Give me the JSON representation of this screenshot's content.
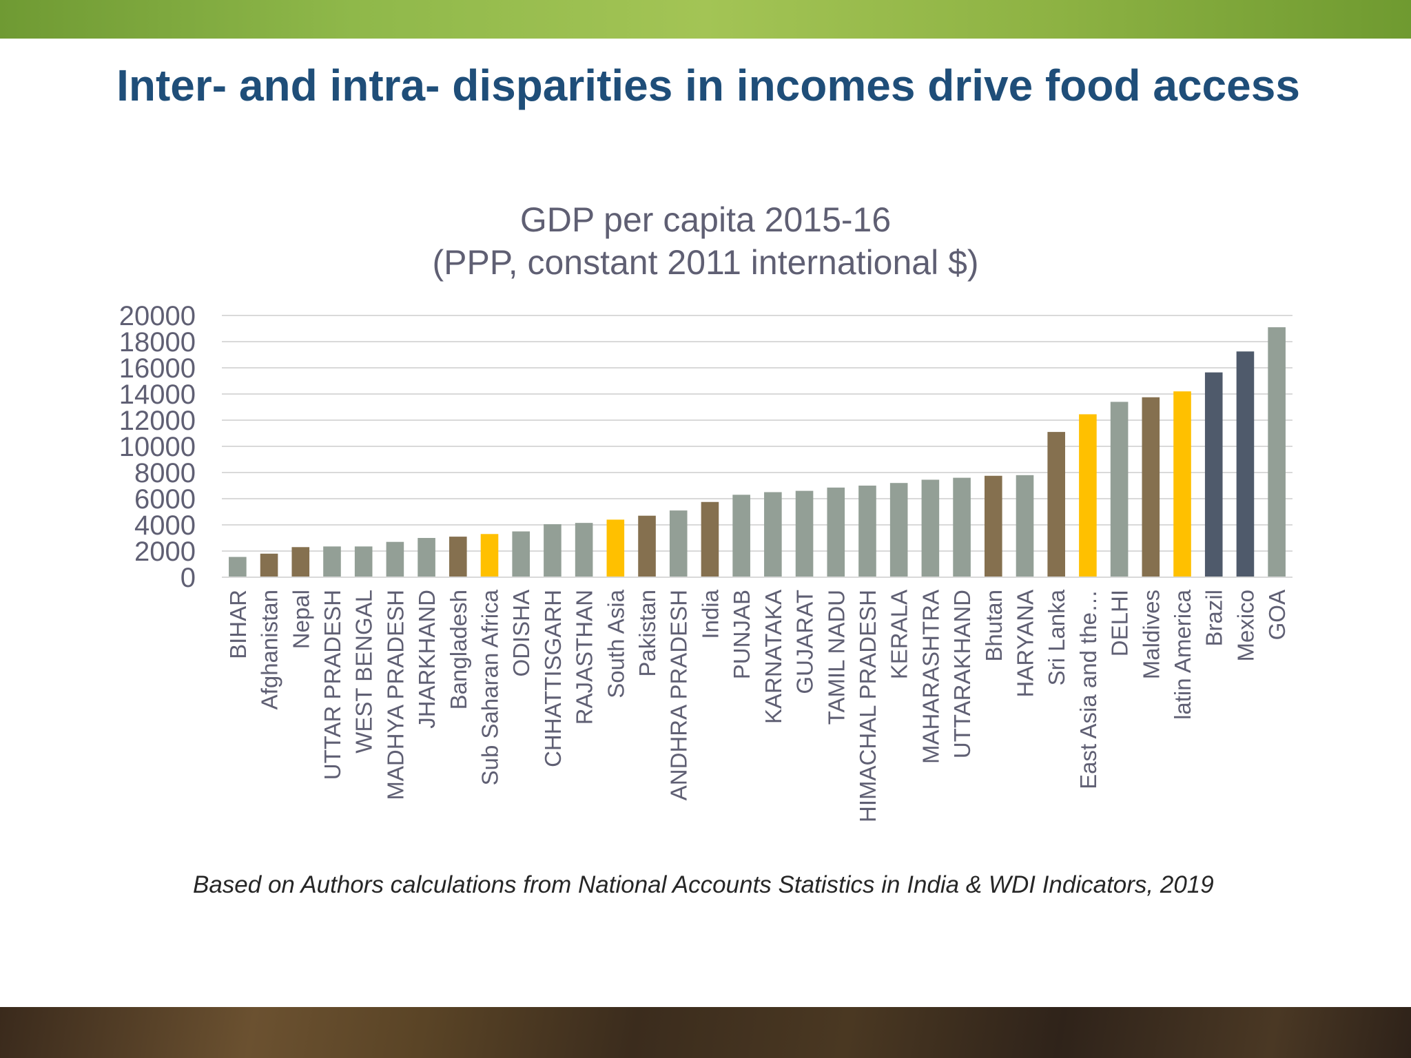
{
  "slide": {
    "title": "Inter- and intra- disparities in incomes drive food access",
    "footnote": "Based on Authors calculations from National Accounts Statistics in India & WDI Indicators, 2019"
  },
  "colors": {
    "indian_state": "#939f96",
    "south_asian_country": "#85704f",
    "region_aggregate": "#ffc000",
    "other_country": "#4f5a6b",
    "title_text": "#1f4e79",
    "chart_text": "#5f5f73",
    "gridline": "#d9d9d9"
  },
  "chart_data": {
    "type": "bar",
    "title_line1": "GDP per capita 2015-16",
    "title_line2": "(PPP, constant 2011 international $)",
    "xlabel": "",
    "ylabel": "",
    "ylim": [
      0,
      20000
    ],
    "yticks": [
      0,
      2000,
      4000,
      6000,
      8000,
      10000,
      12000,
      14000,
      16000,
      18000,
      20000
    ],
    "grid": true,
    "legend": "none",
    "categories": [
      "BIHAR",
      "Afghanistan",
      "Nepal",
      "UTTAR PRADESH",
      "WEST BENGAL",
      "MADHYA PRADESH",
      "JHARKHAND",
      "Bangladesh",
      "Sub Saharan Africa",
      "ODISHA",
      "CHHATTISGARH",
      "RAJASTHAN",
      "South Asia",
      "Pakistan",
      "ANDHRA PRADESH",
      "India",
      "PUNJAB",
      "KARNATAKA",
      "GUJARAT",
      "TAMIL NADU",
      "HIMACHAL PRADESH",
      "KERALA",
      "MAHARASHTRA",
      "UTTARAKHAND",
      "Bhutan",
      "HARYANA",
      "Sri Lanka",
      "East Asia and the…",
      "DELHI",
      "Maldives",
      "latin America",
      "Brazil",
      "Mexico",
      "GOA"
    ],
    "values": [
      1550,
      1800,
      2300,
      2350,
      2350,
      2700,
      3000,
      3100,
      3300,
      3500,
      4050,
      4150,
      4400,
      4700,
      5100,
      5750,
      6300,
      6500,
      6600,
      6850,
      7000,
      7200,
      7450,
      7600,
      7750,
      7800,
      11100,
      12450,
      13400,
      13750,
      14200,
      15650,
      17250,
      19100
    ],
    "bar_groups": [
      "indian_state",
      "south_asian_country",
      "south_asian_country",
      "indian_state",
      "indian_state",
      "indian_state",
      "indian_state",
      "south_asian_country",
      "region_aggregate",
      "indian_state",
      "indian_state",
      "indian_state",
      "region_aggregate",
      "south_asian_country",
      "indian_state",
      "south_asian_country",
      "indian_state",
      "indian_state",
      "indian_state",
      "indian_state",
      "indian_state",
      "indian_state",
      "indian_state",
      "indian_state",
      "south_asian_country",
      "indian_state",
      "south_asian_country",
      "region_aggregate",
      "indian_state",
      "south_asian_country",
      "region_aggregate",
      "other_country",
      "other_country",
      "indian_state"
    ]
  }
}
